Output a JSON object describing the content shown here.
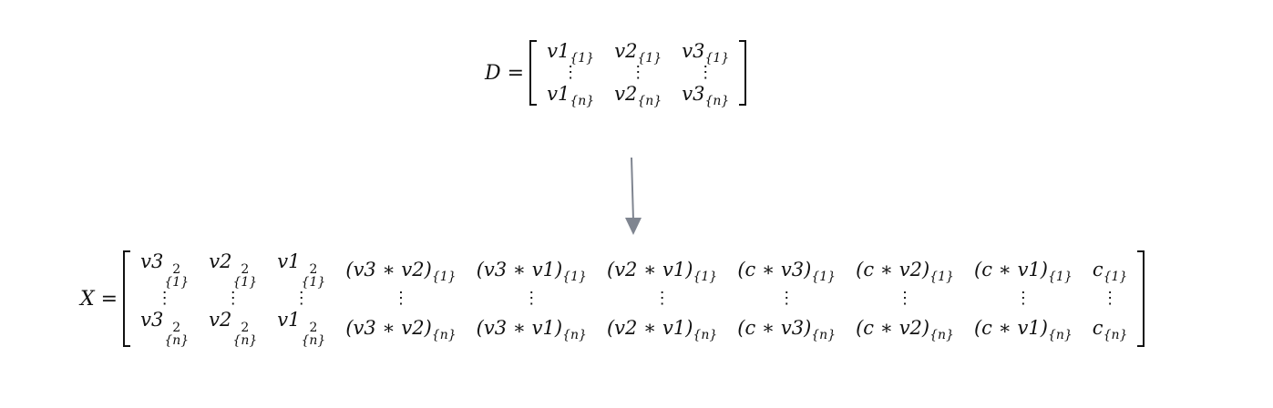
{
  "matrix_d": {
    "label": "D =",
    "rows": [
      [
        "v1{1}",
        "v2{1}",
        "v3{1}"
      ],
      [
        "⋮",
        "⋮",
        "⋮"
      ],
      [
        "v1{n}",
        "v2{n}",
        "v3{n}"
      ]
    ]
  },
  "matrix_x": {
    "label": "X =",
    "rows": [
      [
        "v3²{1}",
        "v2²{1}",
        "v1²{1}",
        "(v3 ∗ v2){1}",
        "(v3 ∗ v1){1}",
        "(v2 ∗ v1){1}",
        "(c ∗ v3){1}",
        "(c ∗ v2){1}",
        "(c ∗ v1){1}",
        "c{1}"
      ],
      [
        "⋮",
        "⋮",
        "⋮",
        "⋮",
        "⋮",
        "⋮",
        "⋮",
        "⋮",
        "⋮",
        "⋮"
      ],
      [
        "v3²{n}",
        "v2²{n}",
        "v1²{n}",
        "(v3 ∗ v2){n}",
        "(v3 ∗ v1){n}",
        "(v2 ∗ v1){n}",
        "(c ∗ v3){n}",
        "(c ∗ v2){n}",
        "(c ∗ v1){n}",
        "c{n}"
      ]
    ]
  },
  "colors": {
    "arrow": "#7f8590",
    "text": "#111111"
  }
}
